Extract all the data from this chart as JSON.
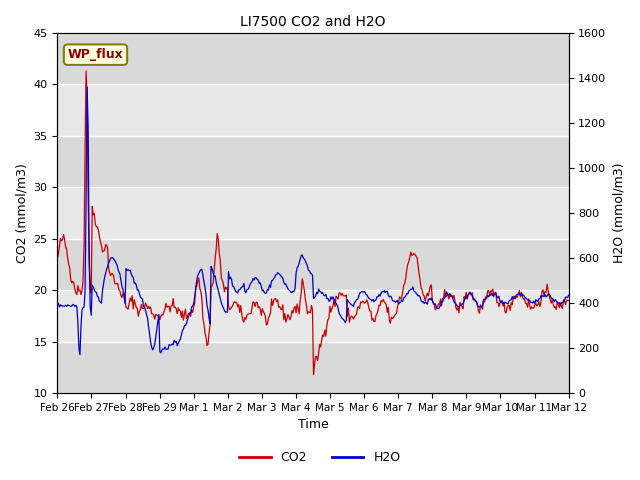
{
  "title": "LI7500 CO2 and H2O",
  "xlabel": "Time",
  "ylabel_left": "CO2 (mmol/m3)",
  "ylabel_right": "H2O (mmol/m3)",
  "annotation_text": "WP_flux",
  "ylim_left": [
    10,
    45
  ],
  "ylim_right": [
    0,
    1600
  ],
  "yticks_left": [
    10,
    15,
    20,
    25,
    30,
    35,
    40,
    45
  ],
  "yticks_right": [
    0,
    200,
    400,
    600,
    800,
    1000,
    1200,
    1400,
    1600
  ],
  "background_color": "#ffffff",
  "plot_bg_color": "#e8e8e8",
  "co2_color": "#cc0000",
  "h2o_color": "#0000cc",
  "grid_color": "#ffffff",
  "n_points": 500,
  "x_start": 0,
  "x_end": 15.0,
  "xtick_positions": [
    0,
    1,
    2,
    3,
    4,
    5,
    6,
    7,
    8,
    9,
    10,
    11,
    12,
    13,
    14,
    15
  ],
  "xtick_labels": [
    "Feb 26",
    "Feb 27",
    "Feb 28",
    "Feb 29",
    "Mar 1",
    "Mar 2",
    "Mar 3",
    "Mar 4",
    "Mar 5",
    "Mar 6",
    "Mar 7",
    "Mar 8",
    "Mar 9",
    "Mar 10",
    "Mar 11",
    "Mar 12"
  ]
}
